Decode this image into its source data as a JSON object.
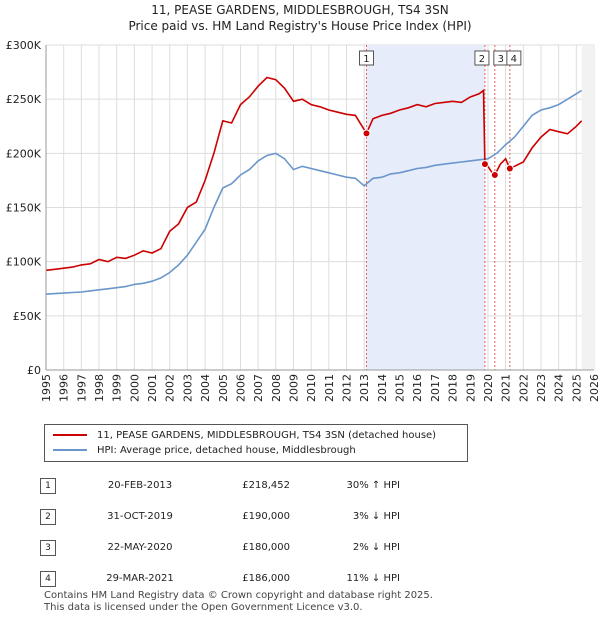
{
  "chart_data": {
    "type": "line",
    "title": "11, PEASE GARDENS, MIDDLESBROUGH, TS4 3SN",
    "subtitle": "Price paid vs. HM Land Registry's House Price Index (HPI)",
    "ylim": [
      0,
      300000
    ],
    "xlim": [
      1995,
      2026
    ],
    "y_ticks": [
      0,
      50000,
      100000,
      150000,
      200000,
      250000,
      300000
    ],
    "y_tick_labels": [
      "£0",
      "£50K",
      "£100K",
      "£150K",
      "£200K",
      "£250K",
      "£300K"
    ],
    "x_ticks": [
      1995,
      1996,
      1997,
      1998,
      1999,
      2000,
      2001,
      2002,
      2003,
      2004,
      2005,
      2006,
      2007,
      2008,
      2009,
      2010,
      2011,
      2012,
      2013,
      2014,
      2015,
      2016,
      2017,
      2018,
      2019,
      2020,
      2021,
      2022,
      2023,
      2024,
      2025,
      2026
    ],
    "grid": true,
    "series": [
      {
        "name": "11, PEASE GARDENS, MIDDLESBROUGH, TS4 3SN (detached house)",
        "color": "#cc0000",
        "x": [
          1995,
          1995.5,
          1996,
          1996.5,
          1997,
          1997.5,
          1998,
          1998.5,
          1999,
          1999.5,
          2000,
          2000.5,
          2001,
          2001.5,
          2002,
          2002.5,
          2003,
          2003.5,
          2004,
          2004.5,
          2005,
          2005.5,
          2006,
          2006.5,
          2007,
          2007.5,
          2008,
          2008.5,
          2009,
          2009.5,
          2010,
          2010.5,
          2011,
          2011.5,
          2012,
          2012.5,
          2013.13,
          2013.5,
          2014,
          2014.5,
          2015,
          2015.5,
          2016,
          2016.5,
          2017,
          2017.5,
          2018,
          2018.5,
          2019,
          2019.5,
          2019.75,
          2019.83,
          2020,
          2020.2,
          2020.39,
          2020.7,
          2021,
          2021.24,
          2021.5,
          2022,
          2022.5,
          2023,
          2023.5,
          2024,
          2024.5,
          2025,
          2025.3
        ],
        "y": [
          92000,
          93000,
          94000,
          95000,
          97000,
          98000,
          102000,
          100000,
          104000,
          103000,
          106000,
          110000,
          108000,
          112000,
          128000,
          135000,
          150000,
          155000,
          175000,
          200000,
          230000,
          228000,
          245000,
          252000,
          262000,
          270000,
          268000,
          260000,
          248000,
          250000,
          245000,
          243000,
          240000,
          238000,
          236000,
          235000,
          218452,
          232000,
          235000,
          237000,
          240000,
          242000,
          245000,
          243000,
          246000,
          247000,
          248000,
          247000,
          252000,
          255000,
          258000,
          190000,
          188000,
          183000,
          180000,
          190000,
          195000,
          186000,
          188000,
          192000,
          205000,
          215000,
          222000,
          220000,
          218000,
          225000,
          230000
        ]
      },
      {
        "name": "HPI: Average price, detached house, Middlesbrough",
        "color": "#6a96cc",
        "x": [
          1995,
          1995.5,
          1996,
          1996.5,
          1997,
          1997.5,
          1998,
          1998.5,
          1999,
          1999.5,
          2000,
          2000.5,
          2001,
          2001.5,
          2002,
          2002.5,
          2003,
          2003.5,
          2004,
          2004.5,
          2005,
          2005.5,
          2006,
          2006.5,
          2007,
          2007.5,
          2008,
          2008.5,
          2009,
          2009.5,
          2010,
          2010.5,
          2011,
          2011.5,
          2012,
          2012.5,
          2013,
          2013.5,
          2014,
          2014.5,
          2015,
          2015.5,
          2016,
          2016.5,
          2017,
          2017.5,
          2018,
          2018.5,
          2019,
          2019.5,
          2020,
          2020.5,
          2021,
          2021.5,
          2022,
          2022.5,
          2023,
          2023.5,
          2024,
          2024.5,
          2025,
          2025.3
        ],
        "y": [
          70000,
          70500,
          71000,
          71500,
          72000,
          73000,
          74000,
          75000,
          76000,
          77000,
          79000,
          80000,
          82000,
          85000,
          90000,
          97000,
          106000,
          118000,
          130000,
          150000,
          168000,
          172000,
          180000,
          185000,
          193000,
          198000,
          200000,
          195000,
          185000,
          188000,
          186000,
          184000,
          182000,
          180000,
          178000,
          177000,
          170000,
          177000,
          178000,
          181000,
          182000,
          184000,
          186000,
          187000,
          189000,
          190000,
          191000,
          192000,
          193000,
          194000,
          195000,
          200000,
          208000,
          215000,
          225000,
          235000,
          240000,
          242000,
          245000,
          250000,
          255000,
          258000
        ]
      }
    ],
    "markers": [
      {
        "label": "1",
        "x": 2013.13,
        "y": 218452
      },
      {
        "label": "2",
        "x": 2019.83,
        "y": 190000
      },
      {
        "label": "3",
        "x": 2020.39,
        "y": 180000
      },
      {
        "label": "4",
        "x": 2021.24,
        "y": 186000
      }
    ],
    "highlight": {
      "from": 2013.13,
      "to": 2019.83
    }
  },
  "legend": {
    "property_label": "11, PEASE GARDENS, MIDDLESBROUGH, TS4 3SN (detached house)",
    "hpi_label": "HPI: Average price, detached house, Middlesbrough"
  },
  "sales": [
    {
      "num": "1",
      "date": "20-FEB-2013",
      "price": "£218,452",
      "hpi": "30% ↑ HPI"
    },
    {
      "num": "2",
      "date": "31-OCT-2019",
      "price": "£190,000",
      "hpi": "3% ↓ HPI"
    },
    {
      "num": "3",
      "date": "22-MAY-2020",
      "price": "£180,000",
      "hpi": "2% ↓ HPI"
    },
    {
      "num": "4",
      "date": "29-MAR-2021",
      "price": "£186,000",
      "hpi": "11% ↓ HPI"
    }
  ],
  "footer": {
    "line1": "Contains HM Land Registry data © Crown copyright and database right 2025.",
    "line2": "This data is licensed under the Open Government Licence v3.0."
  }
}
